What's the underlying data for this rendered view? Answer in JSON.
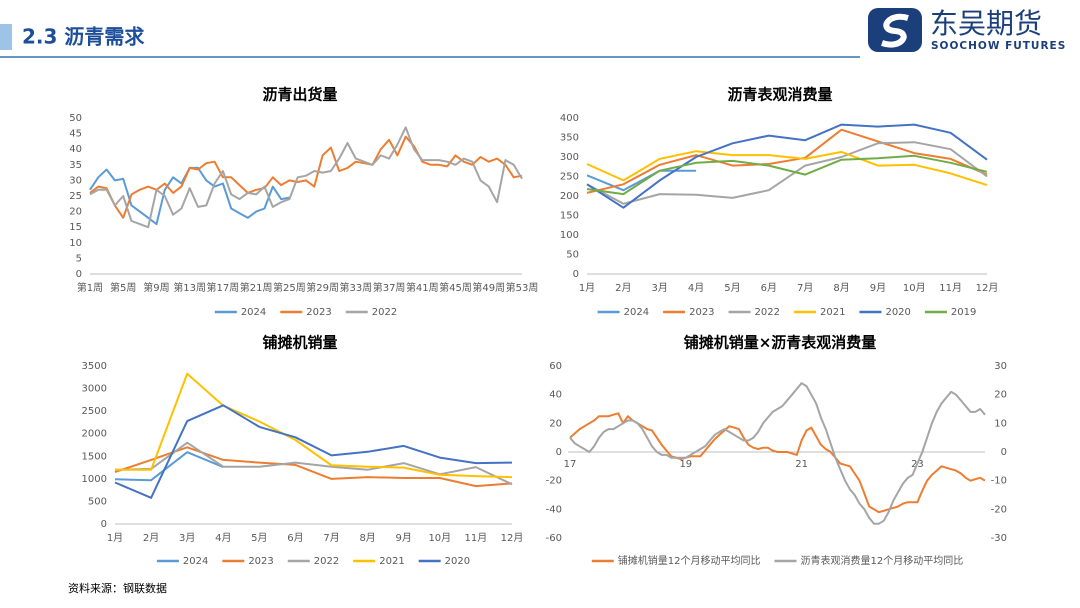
{
  "header": {
    "title": "2.3 沥青需求",
    "logo_cn": "东吴期货",
    "logo_en": "SOOCHOW FUTURES"
  },
  "source": "资料来源：钢联数据",
  "chart_data": [
    {
      "type": "line",
      "title": "沥青出货量",
      "categories": [
        "第1周",
        null,
        null,
        null,
        "第5周",
        null,
        null,
        null,
        "第9周",
        null,
        null,
        null,
        "第13周",
        null,
        null,
        null,
        "第17周",
        null,
        null,
        null,
        "第21周",
        null,
        null,
        null,
        "第25周",
        null,
        null,
        null,
        "第29周",
        null,
        null,
        null,
        "第33周",
        null,
        null,
        null,
        "第37周",
        null,
        null,
        null,
        "第41周",
        null,
        null,
        null,
        "第45周",
        null,
        null,
        null,
        "第49周",
        null,
        null,
        null,
        "第53周"
      ],
      "ylim": [
        0,
        50
      ],
      "yticks": [
        0,
        5,
        10,
        15,
        20,
        25,
        30,
        35,
        40,
        45,
        50
      ],
      "series": [
        {
          "name": "2024",
          "color": "#5b9bd5",
          "values": [
            27,
            31,
            33.5,
            30,
            30.5,
            22,
            20,
            18,
            16,
            27,
            31,
            29,
            34,
            34,
            30,
            28,
            29,
            21,
            19.5,
            18,
            20,
            21,
            28,
            24,
            24.5,
            null,
            null,
            null,
            null,
            null,
            null,
            null,
            null,
            null,
            null,
            null,
            null,
            null,
            null,
            null,
            null,
            null,
            null,
            null,
            null,
            null,
            null,
            null,
            null,
            null,
            null,
            null,
            null
          ]
        },
        {
          "name": "2023",
          "color": "#ed7d31",
          "values": [
            26,
            28,
            27.5,
            22,
            18,
            25.5,
            27,
            28,
            27,
            29,
            26,
            28,
            34,
            33.5,
            35.5,
            36,
            31,
            31,
            28.5,
            26,
            27,
            27.5,
            31,
            28.5,
            30,
            29.5,
            30,
            28,
            38,
            40.5,
            33,
            34,
            36,
            35.5,
            35,
            40,
            43,
            38,
            44,
            41,
            36,
            35,
            35,
            34.5,
            38,
            36,
            35,
            37.5,
            36,
            37,
            35,
            31,
            31.5
          ]
        },
        {
          "name": "2022",
          "color": "#a5a5a5",
          "values": [
            25.5,
            27,
            27,
            22,
            25,
            17,
            16,
            15,
            27,
            25,
            19,
            21,
            27.5,
            21.5,
            22,
            29,
            33,
            25.5,
            24,
            26,
            25.5,
            28,
            21.5,
            23,
            24,
            31,
            31.5,
            33,
            32.5,
            33,
            37,
            42,
            37,
            36,
            35,
            38,
            37,
            41.5,
            47,
            40,
            36.5,
            36.5,
            36.5,
            36,
            35,
            37,
            36,
            30,
            28,
            23,
            36.5,
            35,
            30.5
          ]
        }
      ]
    },
    {
      "type": "line",
      "title": "沥青表观消费量",
      "categories": [
        "1月",
        "2月",
        "3月",
        "4月",
        "5月",
        "6月",
        "7月",
        "8月",
        "9月",
        "10月",
        "11月",
        "12月"
      ],
      "ylim": [
        0,
        400
      ],
      "yticks": [
        0,
        50,
        100,
        150,
        200,
        250,
        300,
        350,
        400
      ],
      "series": [
        {
          "name": "2024",
          "color": "#5b9bd5",
          "values": [
            253,
            215,
            265,
            265,
            null,
            null,
            null,
            null,
            null,
            null,
            null,
            null
          ]
        },
        {
          "name": "2023",
          "color": "#ed7d31",
          "values": [
            208,
            230,
            280,
            305,
            278,
            282,
            298,
            370,
            340,
            310,
            295,
            255
          ]
        },
        {
          "name": "2022",
          "color": "#a5a5a5",
          "values": [
            230,
            180,
            205,
            203,
            195,
            215,
            278,
            300,
            335,
            338,
            320,
            250
          ]
        },
        {
          "name": "2021",
          "color": "#ffc000",
          "values": [
            282,
            240,
            295,
            315,
            305,
            305,
            295,
            313,
            278,
            280,
            258,
            228
          ]
        },
        {
          "name": "2020",
          "color": "#4472c4",
          "values": [
            230,
            170,
            240,
            300,
            335,
            355,
            343,
            383,
            378,
            383,
            362,
            293
          ]
        },
        {
          "name": "2019",
          "color": "#70ad47",
          "values": [
            218,
            205,
            265,
            285,
            290,
            278,
            255,
            293,
            297,
            303,
            285,
            262
          ]
        }
      ]
    },
    {
      "type": "line",
      "title": "铺摊机销量",
      "categories": [
        "1月",
        "2月",
        "3月",
        "4月",
        "5月",
        "6月",
        "7月",
        "8月",
        "9月",
        "10月",
        "11月",
        "12月"
      ],
      "ylim": [
        0,
        3500
      ],
      "yticks": [
        0,
        500,
        1000,
        1500,
        2000,
        2500,
        3000,
        3500
      ],
      "series": [
        {
          "name": "2024",
          "color": "#5b9bd5",
          "values": [
            990,
            970,
            1590,
            1260,
            null,
            null,
            null,
            null,
            null,
            null,
            null,
            null
          ]
        },
        {
          "name": "2023",
          "color": "#ed7d31",
          "values": [
            1150,
            1420,
            1700,
            1420,
            1360,
            1310,
            1000,
            1040,
            1020,
            1020,
            840,
            900
          ]
        },
        {
          "name": "2022",
          "color": "#a5a5a5",
          "values": [
            1200,
            1220,
            1800,
            1270,
            1270,
            1360,
            1270,
            1200,
            1350,
            1100,
            1260,
            880
          ]
        },
        {
          "name": "2021",
          "color": "#ffc000",
          "values": [
            1200,
            1200,
            3330,
            2620,
            2270,
            1860,
            1300,
            1270,
            1250,
            1090,
            1060,
            1040
          ]
        },
        {
          "name": "2020",
          "color": "#4472c4",
          "values": [
            920,
            580,
            2280,
            2630,
            2150,
            1920,
            1520,
            1600,
            1730,
            1470,
            1350,
            1360
          ]
        }
      ]
    },
    {
      "type": "line",
      "title": "铺摊机销量×沥青表观消费量",
      "categories": [
        "17",
        null,
        null,
        null,
        null,
        null,
        null,
        null,
        null,
        null,
        null,
        null,
        null,
        null,
        null,
        null,
        null,
        null,
        null,
        null,
        null,
        null,
        null,
        null,
        "19",
        null,
        null,
        null,
        null,
        null,
        null,
        null,
        null,
        null,
        null,
        null,
        null,
        null,
        null,
        null,
        null,
        null,
        null,
        null,
        null,
        null,
        null,
        null,
        "21",
        null,
        null,
        null,
        null,
        null,
        null,
        null,
        null,
        null,
        null,
        null,
        null,
        null,
        null,
        null,
        null,
        null,
        null,
        null,
        null,
        null,
        null,
        null,
        "23",
        null,
        null,
        null,
        null,
        null,
        null,
        null,
        null,
        null,
        null,
        null,
        null,
        null,
        null
      ],
      "ylim": [
        -60,
        60
      ],
      "yticks": [
        -60,
        -40,
        -20,
        0,
        20,
        40,
        60
      ],
      "y2lim": [
        -30,
        30
      ],
      "y2ticks": [
        -30,
        -20,
        -10,
        0,
        10,
        20,
        30
      ],
      "series": [
        {
          "name": "铺摊机销量12个月移动平均同比",
          "color": "#ed7d31",
          "values": [
            10,
            13,
            16,
            18,
            20,
            22,
            25,
            25,
            25,
            26,
            27,
            20,
            25,
            22,
            20,
            18,
            16,
            15,
            10,
            5,
            1,
            -3,
            -4,
            -5,
            -4,
            -3,
            -3,
            -3,
            1,
            5,
            9,
            12,
            15,
            18,
            17,
            16,
            10,
            5,
            3,
            2,
            3,
            3,
            1,
            0,
            0,
            0,
            -1,
            -2,
            8,
            15,
            17,
            11,
            5,
            2,
            0,
            -4,
            -8,
            -9,
            -10,
            -15,
            -20,
            -29,
            -38,
            -40,
            -42,
            -41,
            -40,
            -39,
            -38,
            -36,
            -35,
            -35,
            -35,
            -27,
            -20,
            -16,
            -13,
            -10,
            -11,
            -12,
            -13,
            -15,
            -18,
            -20,
            -19,
            -18,
            -20
          ]
        },
        {
          "name": "沥青表观消费量12个月移动平均同比",
          "color": "#a5a5a5",
          "axis": "y2",
          "values": [
            5,
            3,
            2,
            1,
            0,
            2,
            5,
            7,
            8,
            8,
            9,
            10,
            11,
            11,
            10,
            8,
            5,
            2,
            0,
            -1,
            -1,
            -2,
            -2,
            -2,
            -2,
            -1,
            0,
            1,
            2,
            4,
            6,
            7,
            8,
            7,
            6,
            5,
            4,
            4,
            5,
            7,
            10,
            12,
            14,
            15,
            16,
            18,
            20,
            22,
            24,
            23,
            20,
            17,
            12,
            8,
            3,
            -2,
            -6,
            -10,
            -13,
            -15,
            -18,
            -20,
            -23,
            -25,
            -25,
            -24,
            -21,
            -17,
            -14,
            -11,
            -9,
            -8,
            -4,
            0,
            5,
            10,
            14,
            17,
            19,
            21,
            20,
            18,
            16,
            14,
            14,
            15,
            13
          ]
        }
      ]
    }
  ]
}
